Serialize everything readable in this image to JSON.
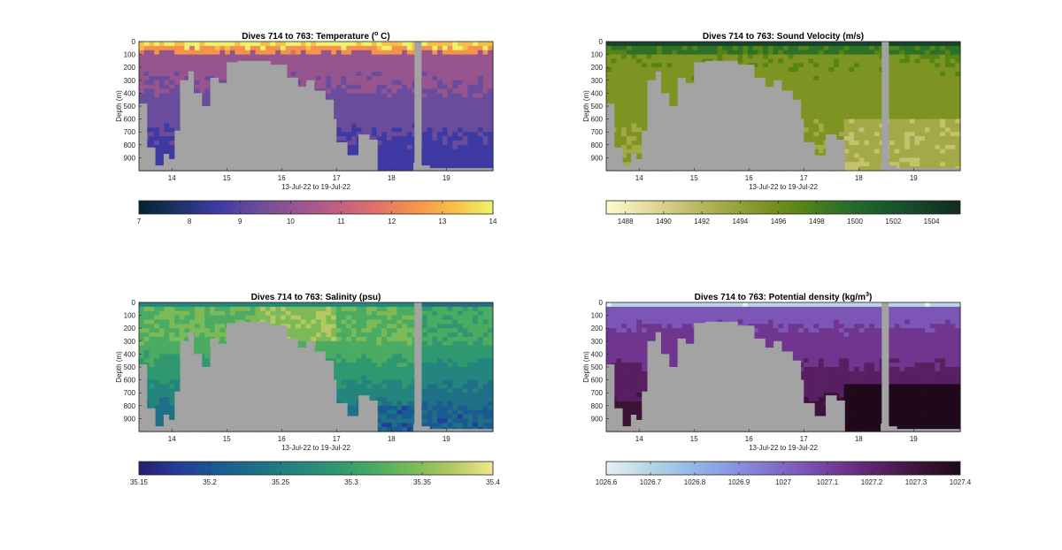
{
  "chart_data": [
    {
      "type": "heatmap",
      "title": "Dives 714 to 763: Temperature (° C)",
      "title_main": "Dives 714 to 763: Temperature (",
      "title_sup": "o",
      "title_tail": " C)",
      "xlabel": "13-Jul-22 to 19-Jul-22",
      "ylabel": "Depth (m)",
      "x_ticks": [
        "14",
        "15",
        "16",
        "17",
        "18",
        "19"
      ],
      "y_ticks": [
        "0",
        "100",
        "200",
        "300",
        "400",
        "500",
        "600",
        "700",
        "800",
        "900"
      ],
      "xlim": [
        13.4,
        19.85
      ],
      "ylim": [
        0,
        1000
      ],
      "colorbar": {
        "min": 7,
        "max": 14,
        "ticks": [
          "7",
          "8",
          "9",
          "10",
          "11",
          "12",
          "13",
          "14"
        ],
        "colormap": "thermal"
      }
    },
    {
      "type": "heatmap",
      "title": "Dives 714 to 763: Sound Velocity (m/s)",
      "title_main": "Dives 714 to 763: Sound Velocity (m/s)",
      "title_sup": "",
      "title_tail": "",
      "xlabel": "13-Jul-22 to 19-Jul-22",
      "ylabel": "Depth (m)",
      "x_ticks": [
        "14",
        "15",
        "16",
        "17",
        "18",
        "19"
      ],
      "y_ticks": [
        "0",
        "100",
        "200",
        "300",
        "400",
        "500",
        "600",
        "700",
        "800",
        "900"
      ],
      "xlim": [
        13.4,
        19.85
      ],
      "ylim": [
        0,
        1000
      ],
      "colorbar": {
        "min": 1487,
        "max": 1505.5,
        "ticks": [
          "1488",
          "1490",
          "1492",
          "1494",
          "1496",
          "1498",
          "1500",
          "1502",
          "1504"
        ],
        "colormap": "speed"
      }
    },
    {
      "type": "heatmap",
      "title": "Dives 714 to 763: Salinity (psu)",
      "title_main": "Dives 714 to 763: Salinity (psu)",
      "title_sup": "",
      "title_tail": "",
      "xlabel": "13-Jul-22 to 19-Jul-22",
      "ylabel": "Depth (m)",
      "x_ticks": [
        "14",
        "15",
        "16",
        "17",
        "18",
        "19"
      ],
      "y_ticks": [
        "0",
        "100",
        "200",
        "300",
        "400",
        "500",
        "600",
        "700",
        "800",
        "900"
      ],
      "xlim": [
        13.4,
        19.85
      ],
      "ylim": [
        0,
        1000
      ],
      "colorbar": {
        "min": 35.15,
        "max": 35.4,
        "ticks": [
          "35.15",
          "35.2",
          "35.25",
          "35.3",
          "35.35",
          "35.4"
        ],
        "colormap": "haline"
      }
    },
    {
      "type": "heatmap",
      "title": "Dives 714 to 763: Potential density (kg/m³)",
      "title_main": "Dives 714 to 763: Potential density (kg/m",
      "title_sup": "3",
      "title_tail": ")",
      "xlabel": "13-Jul-22 to 19-Jul-22",
      "ylabel": "Depth (m)",
      "x_ticks": [
        "14",
        "15",
        "16",
        "17",
        "18",
        "19"
      ],
      "y_ticks": [
        "0",
        "100",
        "200",
        "300",
        "400",
        "500",
        "600",
        "700",
        "800",
        "900"
      ],
      "xlim": [
        13.4,
        19.85
      ],
      "ylim": [
        0,
        1000
      ],
      "colorbar": {
        "min": 1026.6,
        "max": 1027.4,
        "ticks": [
          "1026.6",
          "1026.7",
          "1026.8",
          "1026.9",
          "1027",
          "1027.1",
          "1027.2",
          "1027.3",
          "1027.4"
        ],
        "colormap": "dense"
      }
    }
  ],
  "bottom_profile": {
    "x": [
      13.4,
      13.55,
      13.7,
      13.85,
      13.95,
      14.05,
      14.15,
      14.3,
      14.4,
      14.55,
      14.7,
      14.85,
      15.0,
      15.2,
      15.5,
      15.8,
      16.1,
      16.3,
      16.45,
      16.6,
      16.8,
      16.95,
      17.0,
      17.2,
      17.4,
      17.6,
      17.75,
      18.4,
      18.55,
      18.7,
      19.85
    ],
    "depth": [
      480,
      820,
      960,
      870,
      910,
      690,
      300,
      230,
      400,
      500,
      280,
      320,
      160,
      150,
      150,
      180,
      280,
      350,
      300,
      380,
      450,
      600,
      780,
      880,
      720,
      760,
      1000,
      940,
      960,
      980,
      1000
    ]
  },
  "data_gap": {
    "x_start": 18.42,
    "x_end": 18.55
  },
  "colors": {
    "land": "#a3a3a3",
    "axis": "#222222"
  }
}
